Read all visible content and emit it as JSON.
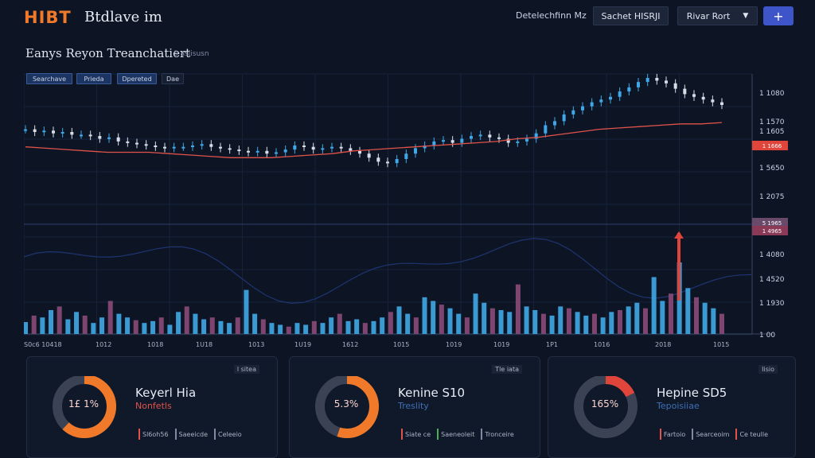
{
  "header": {
    "logo": "HIBT",
    "app_name": "Btdlave im",
    "link": "Detelechfinn Mz",
    "search_label": "Sachet HISRJI",
    "sort_label": "Rivar Rort",
    "add_icon": "plus-icon"
  },
  "page": {
    "title": "Eanys Reyon Treanchatiert",
    "subtitle": "S aslisusn"
  },
  "range_tabs": [
    "Searchave",
    "Prieda",
    "Dpereted",
    "Dae"
  ],
  "axis": {
    "price_labels": [
      "1 1080",
      "1 1570",
      "1 1605",
      "1 5650",
      "1 2075"
    ],
    "highlight_labels": [
      "1 1666",
      "5 1965",
      "1 4965"
    ],
    "volume_labels": [
      "1 4080",
      "1 4520",
      "1 1930",
      "1 00"
    ],
    "x_labels": [
      "S0c6 10418",
      "1012",
      "1018",
      "1U18",
      "1013",
      "1U19",
      "1612",
      "1015",
      "1019",
      "1019",
      "1P1",
      "1016",
      "2018",
      "1015"
    ]
  },
  "colors": {
    "up": "#3fa8e8",
    "down": "#d6dee8",
    "ma": "#e0524a",
    "volume_up": "#3fa8e8",
    "volume_down": "#8a4a78",
    "accent_orange": "#f07a2a",
    "accent_red": "#e0453c"
  },
  "chart_data": {
    "type": "line",
    "title": "Eanys Reyon Treanchatiert",
    "series": [
      {
        "values": [
          62,
          60,
          61,
          59,
          60,
          58,
          58,
          57,
          55,
          56,
          53,
          52,
          51,
          50,
          49,
          48,
          49,
          49,
          50,
          51,
          49,
          48,
          47,
          46,
          45,
          46,
          44,
          45,
          47,
          50,
          49,
          47,
          48,
          49,
          48,
          46,
          44,
          41,
          38,
          37,
          40,
          44,
          48,
          50,
          53,
          54,
          52,
          55,
          57,
          58,
          56,
          55,
          52,
          53,
          55,
          59,
          65,
          68,
          73,
          76,
          79,
          82,
          84,
          86,
          90,
          93,
          97,
          100,
          98,
          96,
          92,
          88,
          86,
          84,
          82,
          80
        ]
      },
      {
        "values": [
          49,
          48,
          47,
          46,
          45,
          45,
          45,
          44,
          43,
          42,
          41,
          41,
          41,
          42,
          43,
          44,
          46,
          47,
          48,
          49,
          50,
          51,
          52,
          53,
          55,
          56,
          58,
          60,
          62,
          63,
          64,
          65,
          66,
          66,
          67
        ]
      }
    ],
    "volume": [
      13,
      20,
      18,
      26,
      30,
      16,
      24,
      20,
      12,
      18,
      36,
      22,
      18,
      15,
      12,
      14,
      18,
      10,
      24,
      30,
      22,
      16,
      18,
      14,
      12,
      18,
      48,
      22,
      16,
      12,
      10,
      8,
      12,
      10,
      14,
      12,
      18,
      22,
      14,
      16,
      12,
      14,
      18,
      24,
      30,
      22,
      18,
      40,
      36,
      32,
      28,
      22,
      18,
      44,
      34,
      28,
      26,
      24,
      54,
      30,
      26,
      22,
      20,
      30,
      28,
      24,
      20,
      22,
      18,
      24,
      26,
      30,
      34,
      28,
      62,
      36,
      44,
      78,
      50,
      40,
      34,
      28,
      22
    ],
    "ylim": [
      0,
      100
    ]
  },
  "cards": [
    {
      "tag": "l sitea",
      "title": "Keyerl Hia",
      "sub": "Nonfetls",
      "sub_color": "#e0524a",
      "ring_text": "1£ 1%",
      "ring_value": 0.62,
      "ring_color": "#f07a2a",
      "legend": [
        {
          "label": "Sl6oh56",
          "color": "#e0524a"
        },
        {
          "label": "Saeeicde",
          "color": "#7f8aa3"
        },
        {
          "label": "Celeeio",
          "color": "#7f8aa3"
        }
      ]
    },
    {
      "tag": "Tle iata",
      "title": "Kenine S10",
      "sub": "Treslity",
      "sub_color": "#3f6fb5",
      "ring_text": "5.3%",
      "ring_value": 0.55,
      "ring_color": "#f07a2a",
      "legend": [
        {
          "label": "Siate ce",
          "color": "#e0524a"
        },
        {
          "label": "Saeneoleit",
          "color": "#4caf50"
        },
        {
          "label": "Tronceire",
          "color": "#7f8aa3"
        }
      ]
    },
    {
      "tag": "Iisio",
      "title": "Hepine SD5",
      "sub": "Tepoisiiae",
      "sub_color": "#3f6fb5",
      "ring_text": "165%",
      "ring_value": 0.18,
      "ring_color": "#e0453c",
      "legend": [
        {
          "label": "Fartoio",
          "color": "#e0524a"
        },
        {
          "label": "Searceoim",
          "color": "#7f8aa3"
        },
        {
          "label": "Ce teulle",
          "color": "#e0524a"
        }
      ]
    }
  ]
}
